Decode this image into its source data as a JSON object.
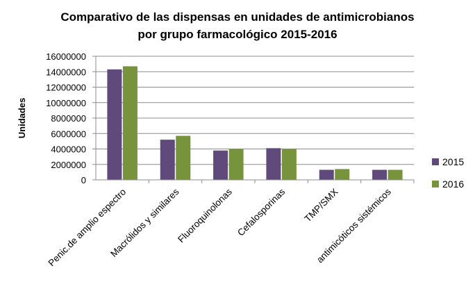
{
  "chart_data": {
    "type": "bar",
    "title_lines": [
      "Comparativo de las dispensas en unidades de antimicrobianos",
      "por grupo farmacológico 2015-2016"
    ],
    "ylabel": "Unidades",
    "xlabel": "",
    "ylim": [
      0,
      16000000
    ],
    "yticks": [
      "0",
      "2000000",
      "4000000",
      "6000000",
      "8000000",
      "10000000",
      "12000000",
      "14000000",
      "16000000"
    ],
    "grid": true,
    "legend_position": "right",
    "categories": [
      "Penic.de amplio espectro",
      "Macrólidos y similares",
      "Fluoroquinolonas",
      "Cefalosporinas",
      "TMP/SMX",
      "antimicóticos sistémicos"
    ],
    "series": [
      {
        "name": "2015",
        "color": "#604A7B",
        "values": [
          14300000,
          5200000,
          3800000,
          4100000,
          1300000,
          1300000
        ]
      },
      {
        "name": "2016",
        "color": "#77933C",
        "values": [
          14700000,
          5700000,
          4000000,
          4000000,
          1400000,
          1300000
        ]
      }
    ]
  }
}
